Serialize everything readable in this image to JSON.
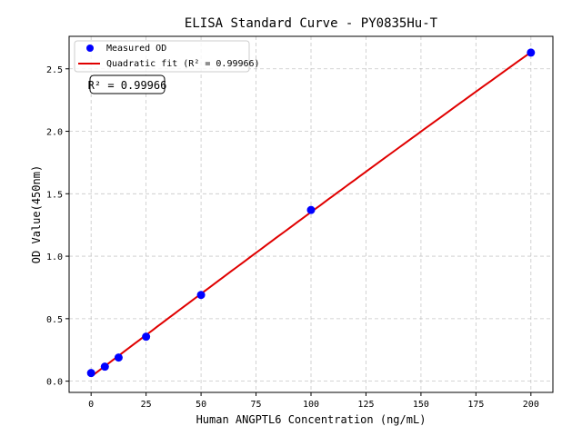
{
  "chart_data": {
    "type": "scatter",
    "title": "ELISA Standard Curve - PY0835Hu-T",
    "xlabel": "Human ANGPTL6 Concentration (ng/mL)",
    "ylabel": "OD Value(450nm)",
    "xlim": [
      -10,
      210
    ],
    "ylim": [
      -0.09,
      2.76
    ],
    "xticks": [
      0,
      25,
      50,
      75,
      100,
      125,
      150,
      175,
      200
    ],
    "yticks": [
      0.0,
      0.5,
      1.0,
      1.5,
      2.0,
      2.5
    ],
    "grid": true,
    "legend_placement": "upper-left",
    "series": [
      {
        "name": "Measured OD",
        "kind": "scatter",
        "color": "#0000ff",
        "x": [
          0,
          6.25,
          12.5,
          25,
          50,
          100,
          200
        ],
        "y": [
          0.065,
          0.116,
          0.189,
          0.356,
          0.69,
          1.37,
          2.63
        ]
      },
      {
        "name": "Quadratic fit (R² = 0.99966)",
        "kind": "line",
        "color": "#e00000",
        "fit": "quadratic"
      }
    ],
    "annotation": "R² = 0.99966"
  }
}
